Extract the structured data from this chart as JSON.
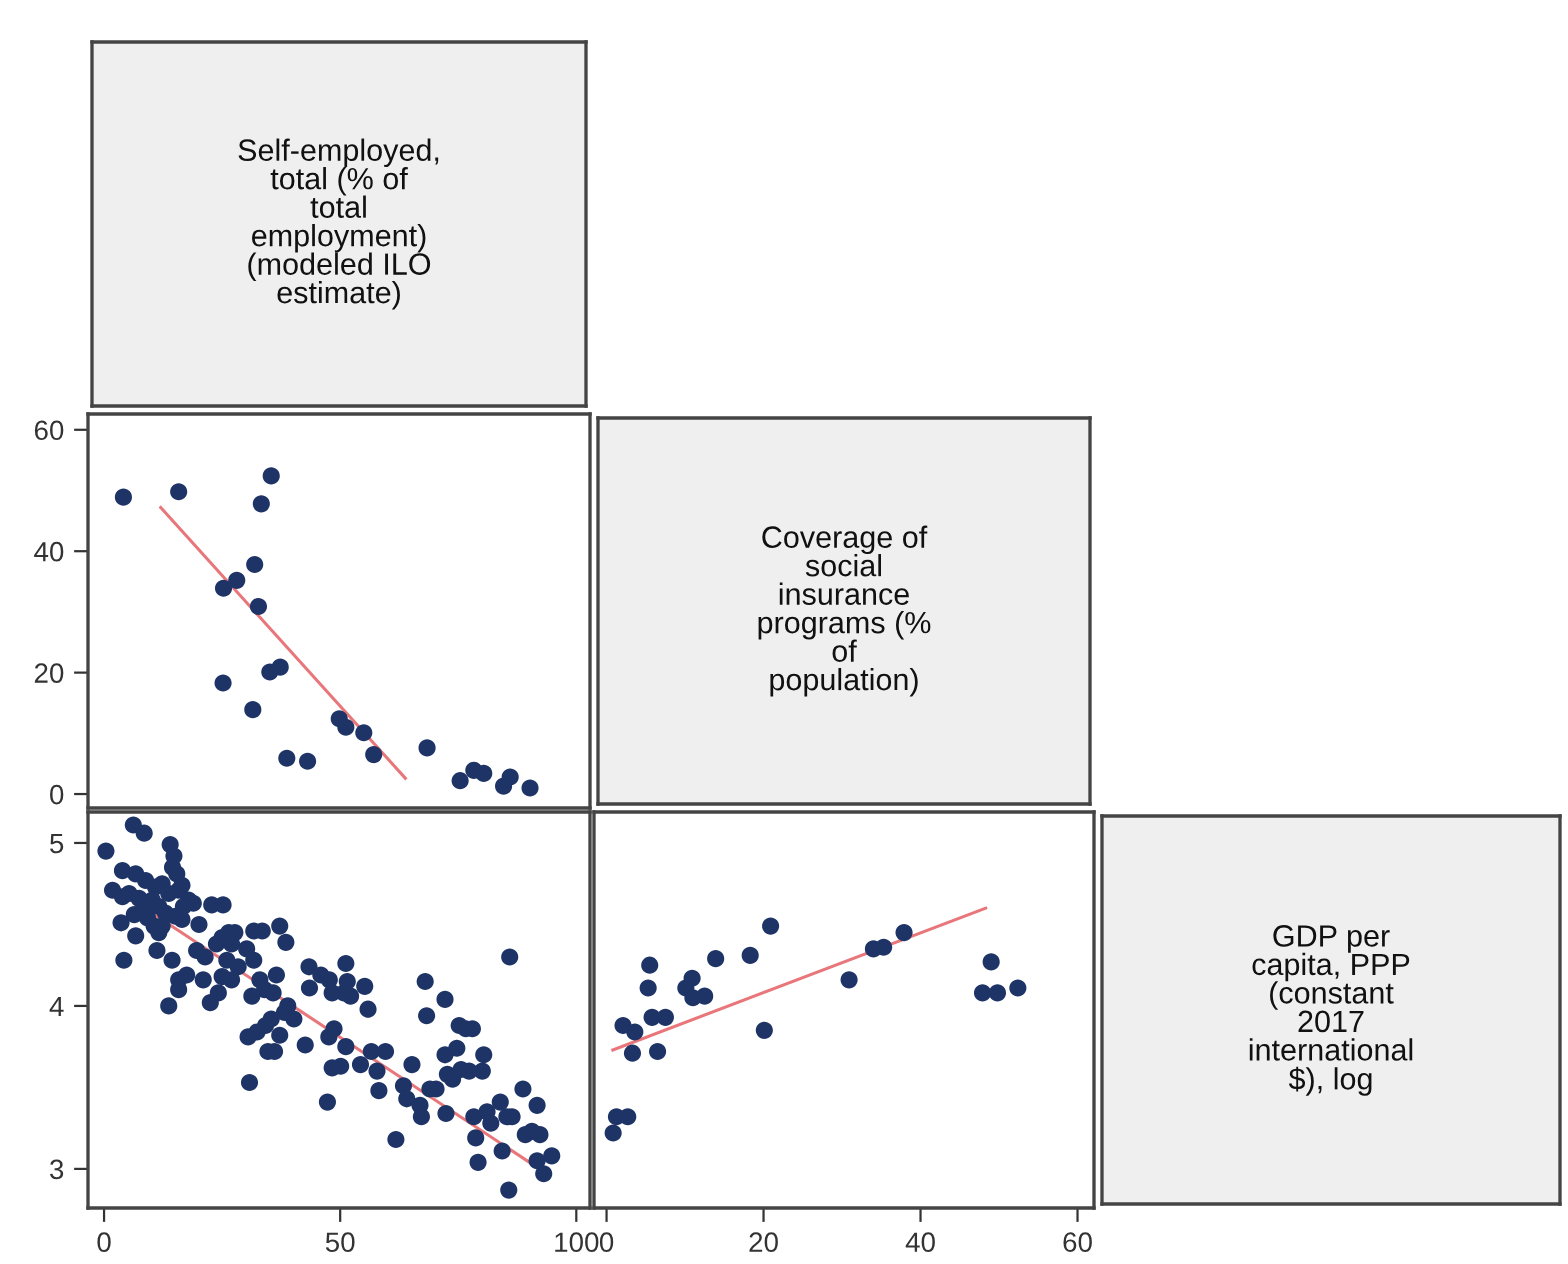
{
  "chart_data": [
    {
      "type": "other",
      "annotations": [
        "Self-employed,\ntotal (% of\ntotal\nemployment)\n(modeled ILO\nestimate)"
      ]
    },
    {
      "type": "scatter",
      "xlim": [
        -3.4,
        102.9
      ],
      "xticks": [
        0,
        50,
        100
      ],
      "ylim": [
        -2.3,
        62.6
      ],
      "yticks": [
        0,
        20,
        40,
        60
      ],
      "tick_labels": "y",
      "series": [
        {
          "type": "scatter",
          "marker": "circle",
          "color": "#1f3466",
          "x": [
            4.1,
            15.8,
            35.4,
            33.3,
            25.3,
            28.1,
            31.9,
            32.7,
            25.2,
            31.5,
            35.1,
            37.3,
            38.7,
            43.1,
            49.8,
            51.2,
            55.0,
            57.1,
            68.4,
            75.4,
            78.3,
            80.4,
            84.6,
            86.0,
            90.2
          ],
          "values": [
            48.9,
            49.8,
            52.4,
            47.8,
            33.9,
            35.2,
            37.8,
            30.9,
            18.3,
            13.9,
            20.1,
            20.9,
            5.9,
            5.4,
            12.4,
            11.0,
            10.1,
            6.5,
            7.6,
            2.2,
            3.9,
            3.4,
            1.3,
            2.8,
            1.0
          ]
        },
        {
          "type": "line",
          "color": "#e8767b",
          "x": [
            12.0,
            63.8
          ],
          "values": [
            47.2,
            2.6
          ]
        }
      ]
    },
    {
      "type": "other",
      "annotations": [
        "Coverage of\nsocial\ninsurance\nprograms (%\nof\npopulation)"
      ]
    },
    {
      "type": "scatter",
      "xlim": [
        -3.4,
        102.9
      ],
      "xticks": [
        0,
        50,
        100
      ],
      "ylim": [
        2.76,
        5.19
      ],
      "yticks": [
        3,
        4,
        5
      ],
      "series": [
        {
          "type": "scatter",
          "marker": "circle",
          "color": "#1f3466",
          "x": [
            0.4,
            6.2,
            8.5,
            14.0,
            14.8,
            14.5,
            3.9,
            1.8,
            3.9,
            6.7,
            8.8,
            10.9,
            12.3,
            13.7,
            15.8,
            16.5,
            17.9,
            18.9,
            10.2,
            11.6,
            13.0,
            15.1,
            16.5,
            10.6,
            11.6,
            6.7,
            3.6,
            4.2,
            11.2,
            14.4,
            13.7,
            15.8,
            17.5,
            15.8,
            20.1,
            22.8,
            25.2,
            19.6,
            21.4,
            22.5,
            21.0,
            23.8,
            25.0,
            26.4,
            27.0,
            27.7,
            26.0,
            25.0,
            24.2,
            27.0,
            28.4,
            30.2,
            31.7,
            33.5,
            31.7,
            31.3,
            33.0,
            34.0,
            35.8,
            36.5,
            37.2,
            38.5,
            30.5,
            32.4,
            30.8,
            34.2,
            35.4,
            34.7,
            36.1,
            37.2,
            38.2,
            38.9,
            40.2,
            42.6,
            43.5,
            43.4,
            45.9,
            47.7,
            48.3,
            47.6,
            47.3,
            48.7,
            48.3,
            50.1,
            50.8,
            51.2,
            51.5,
            52.2,
            51.2,
            54.3,
            55.2,
            55.9,
            56.6,
            57.8,
            58.2,
            59.6,
            61.8,
            63.4,
            64.1,
            65.2,
            66.9,
            67.2,
            68.0,
            68.3,
            69.0,
            70.3,
            72.2,
            72.2,
            72.4,
            72.7,
            73.8,
            74.7,
            75.2,
            75.6,
            76.6,
            78.0,
            77.3,
            78.3,
            78.7,
            79.2,
            80.4,
            80.1,
            81.1,
            81.9,
            83.9,
            84.3,
            85.9,
            85.3,
            85.7,
            86.4,
            88.7,
            89.2,
            90.6,
            91.7,
            92.3,
            91.7,
            93.1,
            94.8,
            5.3,
            7.4,
            8.4,
            6.4,
            9.2,
            12.3,
            15.4,
            16.8
          ],
          "values": [
            4.95,
            5.11,
            5.06,
            4.99,
            4.92,
            4.85,
            4.83,
            4.71,
            4.67,
            4.81,
            4.77,
            4.73,
            4.75,
            4.69,
            4.71,
            4.74,
            4.65,
            4.63,
            4.65,
            4.61,
            4.57,
            4.55,
            4.53,
            4.49,
            4.45,
            4.43,
            4.51,
            4.28,
            4.34,
            4.28,
            4.0,
            4.16,
            4.19,
            4.1,
            4.5,
            4.62,
            4.62,
            4.34,
            4.3,
            4.02,
            4.16,
            4.38,
            4.42,
            4.45,
            4.38,
            4.45,
            4.28,
            4.18,
            4.08,
            4.16,
            4.24,
            4.35,
            4.46,
            4.46,
            4.28,
            4.06,
            4.16,
            4.1,
            4.08,
            4.19,
            4.49,
            4.39,
            3.81,
            3.84,
            3.53,
            3.88,
            3.92,
            3.72,
            3.72,
            3.82,
            3.96,
            4.0,
            3.92,
            3.76,
            4.11,
            4.24,
            4.19,
            4.16,
            4.08,
            3.81,
            3.41,
            3.86,
            3.62,
            3.63,
            4.08,
            4.26,
            4.15,
            4.06,
            3.75,
            3.64,
            4.12,
            3.98,
            3.72,
            3.6,
            3.48,
            3.72,
            3.18,
            3.51,
            3.43,
            3.64,
            3.39,
            3.32,
            4.15,
            3.94,
            3.49,
            3.49,
            4.04,
            3.7,
            3.34,
            3.58,
            3.55,
            3.74,
            3.88,
            3.61,
            3.86,
            3.86,
            3.6,
            3.32,
            3.19,
            3.04,
            3.7,
            3.6,
            3.35,
            3.28,
            3.41,
            3.11,
            4.3,
            3.32,
            2.87,
            3.32,
            3.49,
            3.21,
            3.23,
            3.39,
            3.21,
            3.05,
            2.97,
            3.08,
            4.69,
            4.66,
            4.6,
            4.56,
            4.54,
            4.49,
            4.81,
            4.61
          ]
        },
        {
          "type": "line",
          "color": "#e8767b",
          "x": [
            1.8,
            92.7
          ],
          "values": [
            4.73,
            2.99
          ]
        }
      ]
    },
    {
      "type": "scatter",
      "xlim": [
        -1.6,
        62.1
      ],
      "xticks": [
        0,
        20,
        40,
        60
      ],
      "ylim": [
        2.76,
        5.19
      ],
      "yticks": [
        3,
        4,
        5
      ],
      "tick_labels": "x",
      "series": [
        {
          "type": "scatter",
          "marker": "circle",
          "color": "#1f3466",
          "x": [
            0.84,
            1.26,
            2.7,
            2.1,
            3.6,
            3.3,
            5.5,
            5.3,
            5.8,
            7.5,
            6.5,
            10.1,
            10.9,
            11.0,
            12.5,
            13.9,
            18.3,
            20.9,
            20.1,
            30.9,
            34.0,
            35.3,
            37.9,
            49.0,
            47.9,
            49.8,
            52.4
          ],
          "values": [
            3.22,
            3.32,
            3.32,
            3.88,
            3.84,
            3.71,
            4.25,
            4.11,
            3.93,
            3.93,
            3.72,
            4.11,
            4.17,
            4.05,
            4.06,
            4.29,
            4.31,
            4.49,
            3.85,
            4.16,
            4.35,
            4.36,
            4.45,
            4.27,
            4.08,
            4.08,
            4.11
          ]
        },
        {
          "type": "line",
          "color": "#e8767b",
          "x": [
            0.8,
            48.3
          ],
          "values": [
            3.73,
            4.6
          ]
        }
      ]
    },
    {
      "type": "other",
      "annotations": [
        "GDP per\ncapita, PPP\n(constant\n2017\ninternational\n$), log"
      ]
    }
  ]
}
